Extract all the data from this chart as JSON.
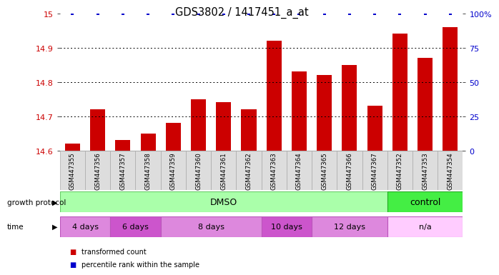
{
  "title": "GDS3802 / 1417451_a_at",
  "samples": [
    "GSM447355",
    "GSM447356",
    "GSM447357",
    "GSM447358",
    "GSM447359",
    "GSM447360",
    "GSM447361",
    "GSM447362",
    "GSM447363",
    "GSM447364",
    "GSM447365",
    "GSM447366",
    "GSM447367",
    "GSM447352",
    "GSM447353",
    "GSM447354"
  ],
  "values": [
    14.62,
    14.72,
    14.63,
    14.65,
    14.68,
    14.75,
    14.74,
    14.72,
    14.92,
    14.83,
    14.82,
    14.85,
    14.73,
    14.94,
    14.87,
    14.96
  ],
  "percentiles": [
    100,
    100,
    100,
    100,
    100,
    100,
    100,
    100,
    100,
    100,
    100,
    100,
    100,
    100,
    100,
    100
  ],
  "ylim_left": [
    14.6,
    15.0
  ],
  "yticks_left": [
    14.6,
    14.7,
    14.8,
    14.9,
    15.0
  ],
  "ytick_labels_left": [
    "14.6",
    "14.7",
    "14.8",
    "14.9",
    "15"
  ],
  "ylim_right": [
    0,
    100
  ],
  "yticks_right": [
    0,
    25,
    50,
    75,
    100
  ],
  "ytick_labels_right": [
    "0",
    "25",
    "50",
    "75",
    "100%"
  ],
  "bar_color": "#cc0000",
  "dot_color": "#0000cc",
  "bar_width": 0.6,
  "grid_color": "#000000",
  "bg_color": "#ffffff",
  "sample_box_color": "#dddddd",
  "sample_box_edge": "#aaaaaa",
  "dmso_color": "#aaffaa",
  "control_color": "#44ee44",
  "time_colors": [
    "#dd88dd",
    "#cc55cc",
    "#dd88dd",
    "#cc55cc",
    "#dd88dd",
    "#ffccff"
  ],
  "time_edge_color": "#bb55bb",
  "tick_label_color_left": "#cc0000",
  "tick_label_color_right": "#0000cc"
}
